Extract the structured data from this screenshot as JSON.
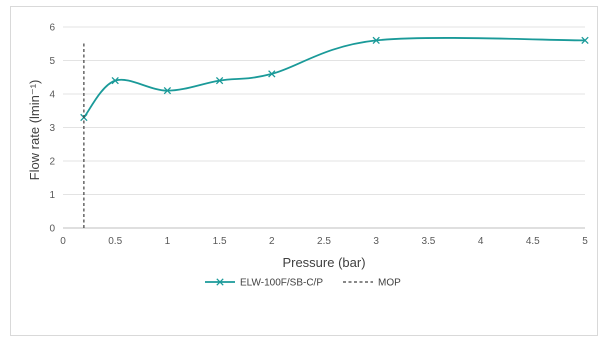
{
  "chart_data": {
    "type": "line",
    "title": "",
    "xlabel": "Pressure (bar)",
    "ylabel": "Flow rate (lmin⁻¹)",
    "xlim": [
      0,
      5
    ],
    "ylim": [
      0,
      6
    ],
    "x_ticks": [
      "0",
      "0.5",
      "1",
      "1.5",
      "2",
      "2.5",
      "3",
      "3.5",
      "4",
      "4.5",
      "5"
    ],
    "y_ticks": [
      "0",
      "1",
      "2",
      "3",
      "4",
      "5",
      "6"
    ],
    "grid": "horizontal",
    "legend_position": "bottom",
    "series": [
      {
        "name": "ELW-100F/SB-C/P",
        "color": "#1a9a99",
        "marker": "x",
        "smooth": true,
        "x": [
          0.2,
          0.5,
          1,
          1.5,
          2,
          3,
          5
        ],
        "y": [
          3.3,
          4.4,
          4.1,
          4.4,
          4.6,
          5.6,
          5.6
        ]
      },
      {
        "name": "MOP",
        "color": "#404040",
        "style": "dashed",
        "x": [
          0.2,
          0.2
        ],
        "y": [
          0,
          5.55
        ]
      }
    ]
  }
}
